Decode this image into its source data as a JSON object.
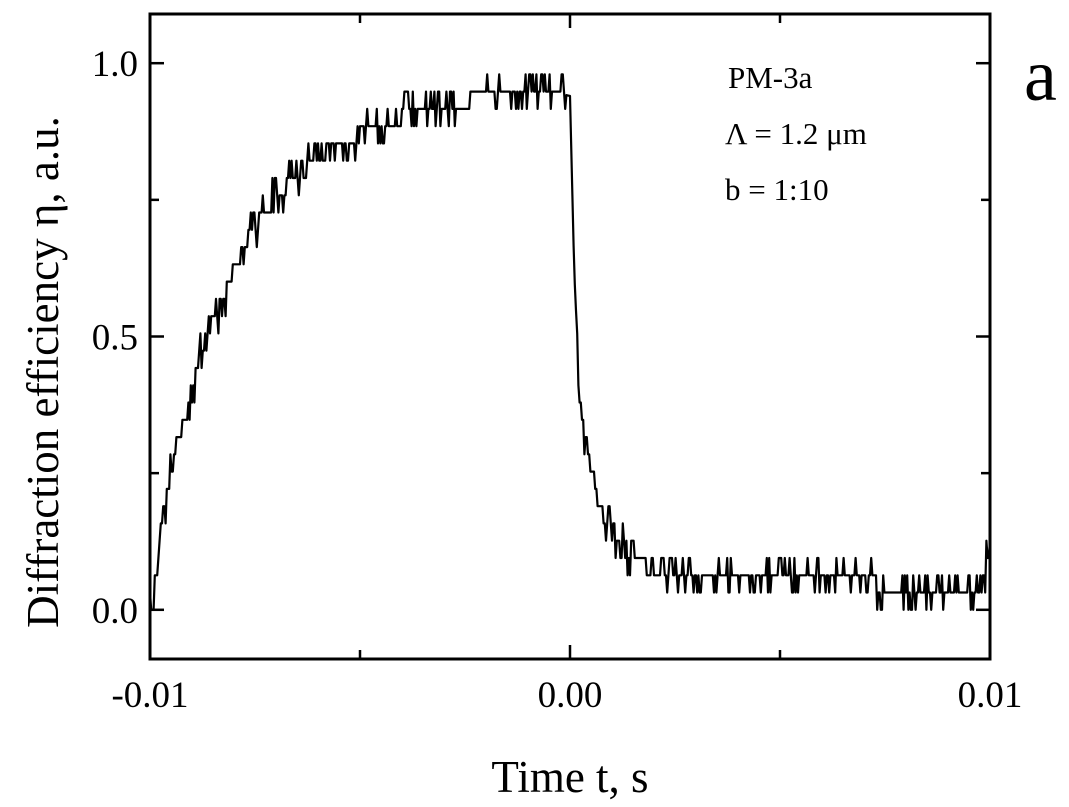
{
  "chart_data": {
    "type": "line",
    "xlabel": "Time t, s",
    "ylabel": "Diffraction efficiency  η, a.u.",
    "xlim": [
      -0.01,
      0.01
    ],
    "ylim": [
      -0.09,
      1.09
    ],
    "x_ticks": [
      -0.01,
      0.0,
      0.01
    ],
    "x_tick_labels": [
      "-0.01",
      "0.00",
      "0.01"
    ],
    "y_ticks": [
      0.0,
      0.5,
      1.0
    ],
    "y_tick_labels": [
      "0.0",
      "0.5",
      "1.0"
    ],
    "annotations": [
      "PM-3a",
      "Λ = 1.2 μm",
      "b = 1:10"
    ],
    "panel_label": "a",
    "grid": false,
    "series": [
      {
        "x": [
          -0.01,
          -0.0099,
          -0.0097,
          -0.0095,
          -0.0093,
          -0.009,
          -0.0088,
          -0.0085,
          -0.0082,
          -0.008,
          -0.0077,
          -0.0075,
          -0.0072,
          -0.007,
          -0.0067,
          -0.0065,
          -0.006,
          -0.0055,
          -0.005,
          -0.0045,
          -0.004,
          -0.0035,
          -0.003,
          -0.0025,
          -0.002,
          -0.0015,
          -0.001,
          -0.0005,
          0.0,
          0.0001,
          0.0002,
          0.0003,
          0.0005,
          0.0007,
          0.001,
          0.0013,
          0.0016,
          0.002,
          0.0025,
          0.003,
          0.004,
          0.005,
          0.006,
          0.007,
          0.008,
          0.009,
          0.0098,
          0.01
        ],
        "y": [
          0.0,
          0.05,
          0.17,
          0.25,
          0.32,
          0.4,
          0.47,
          0.53,
          0.58,
          0.63,
          0.67,
          0.7,
          0.73,
          0.76,
          0.78,
          0.8,
          0.83,
          0.85,
          0.87,
          0.89,
          0.9,
          0.91,
          0.92,
          0.93,
          0.94,
          0.95,
          0.95,
          0.95,
          0.94,
          0.62,
          0.45,
          0.34,
          0.25,
          0.19,
          0.14,
          0.11,
          0.09,
          0.07,
          0.06,
          0.05,
          0.05,
          0.05,
          0.05,
          0.05,
          0.04,
          0.04,
          0.04,
          0.11
        ]
      }
    ]
  }
}
